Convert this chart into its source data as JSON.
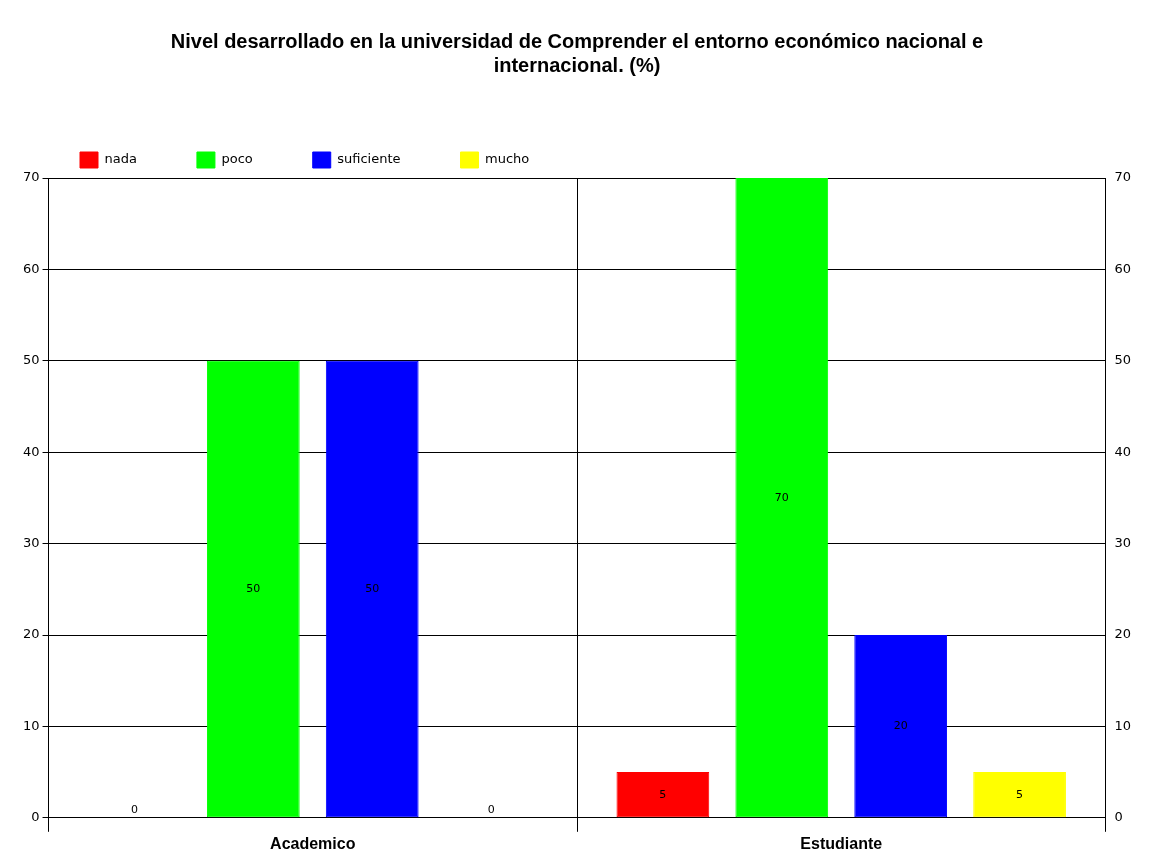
{
  "chart_data": {
    "type": "bar",
    "title": "Nivel desarrollado en la universidad de Comprender el entorno económico nacional e internacional. (%)",
    "categories": [
      "Academico",
      "Estudiante"
    ],
    "series": [
      {
        "name": "nada",
        "color": "#ff0000",
        "values": [
          0,
          5
        ],
        "value_labels": [
          null,
          "5"
        ]
      },
      {
        "name": "poco",
        "color": "#00ff00",
        "values": [
          50,
          70
        ],
        "value_labels": [
          "50",
          "70"
        ]
      },
      {
        "name": "suficiente",
        "color": "#0000ff",
        "values": [
          50,
          20
        ],
        "value_labels": [
          "50",
          "20"
        ]
      },
      {
        "name": "mucho",
        "color": "#ffff00",
        "values": [
          0,
          5
        ],
        "value_labels": [
          null,
          "5"
        ]
      }
    ],
    "annotations": [
      "0",
      "0"
    ],
    "ylim": [
      0,
      70
    ],
    "yticks": [
      0,
      10,
      20,
      30,
      40,
      50,
      60,
      70
    ],
    "y2lim": [
      0,
      70
    ],
    "y2ticks": [
      0,
      10,
      20,
      30,
      40,
      50,
      60,
      70
    ],
    "grid": true,
    "legend": "top"
  }
}
